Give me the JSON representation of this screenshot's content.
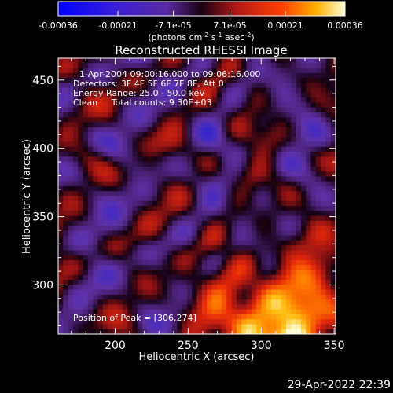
{
  "chart_data": {
    "type": "heatmap",
    "title": "Reconstructed RHESSI Image",
    "xlabel": "Heliocentric X (arcsec)",
    "ylabel": "Heliocentric Y (arcsec)",
    "xlim": [
      161,
      351
    ],
    "ylim": [
      264,
      466
    ],
    "x_ticks": [
      200,
      250,
      300,
      350
    ],
    "y_ticks": [
      300,
      350,
      400,
      450
    ],
    "colorbar": {
      "ticks": [
        "-0.00036",
        "-0.00021",
        "-7.1e-05",
        "7.1e-05",
        "0.00021",
        "0.00036"
      ],
      "tick_values": [
        -0.00036,
        -0.00021,
        -7.1e-05,
        7.1e-05,
        0.00021,
        0.00036
      ],
      "range": [
        -0.00036,
        0.00036
      ],
      "unit_main": "(photons cm",
      "unit_exp1": "-2",
      "unit_mid": " s",
      "unit_exp2": "-1",
      "unit_end": " asec",
      "unit_exp3": "-2",
      "unit_close": ")"
    },
    "annotations": [
      "1-Apr-2004 09:00:16.000 to 09:06:16.000",
      "Detectors: 3F 4F 5F 6F 7F 8F, Att 0",
      "Energy Range: 25.0 - 50.0 keV",
      "Clean     Total counts: 9.30E+03"
    ],
    "peak_label": "Position of Peak = [306,274]",
    "peak": [
      306,
      274
    ],
    "grid": false
  },
  "timestamp": "29-Apr-2022 22:39"
}
